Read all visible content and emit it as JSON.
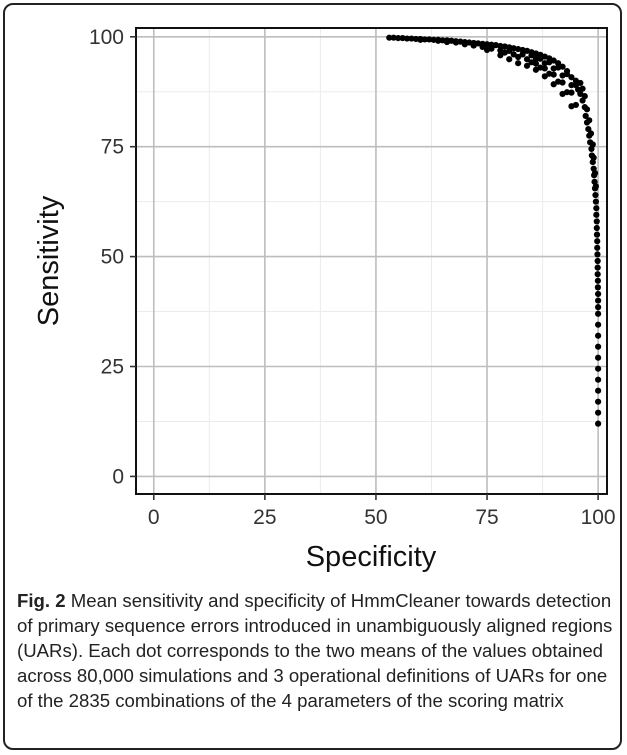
{
  "caption": {
    "label": "Fig. 2",
    "text": "Mean sensitivity and specificity of HmmCleaner towards detection of primary sequence errors introduced in unambiguously aligned regions (UARs). Each dot corresponds to the two means of the values obtained across 80,000 simulations and 3 operational definitions of UARs for one of the 2835 combinations of the 4 parameters of the scoring matrix"
  },
  "chart_data": {
    "type": "scatter",
    "xlabel": "Specificity",
    "ylabel": "Sensitivity",
    "xlim": [
      -4,
      102
    ],
    "ylim": [
      -4,
      102
    ],
    "x_ticks": [
      0,
      25,
      50,
      75,
      100
    ],
    "y_ticks": [
      0,
      25,
      50,
      75,
      100
    ],
    "grid": true,
    "legend": "none",
    "point_color": "#000000",
    "series": [
      {
        "points": [
          [
            53,
            99.8
          ],
          [
            54,
            99.8
          ],
          [
            55,
            99.7
          ],
          [
            56,
            99.7
          ],
          [
            57,
            99.6
          ],
          [
            58,
            99.6
          ],
          [
            59,
            99.5
          ],
          [
            60,
            99.5
          ],
          [
            61,
            99.4
          ],
          [
            62,
            99.4
          ],
          [
            63,
            99.3
          ],
          [
            64,
            99.3
          ],
          [
            65,
            99.2
          ],
          [
            66,
            99.2
          ],
          [
            67,
            99.1
          ],
          [
            68,
            99.0
          ],
          [
            69,
            98.9
          ],
          [
            70,
            98.8
          ],
          [
            71,
            98.7
          ],
          [
            72,
            98.6
          ],
          [
            73,
            98.5
          ],
          [
            74,
            98.4
          ],
          [
            75,
            98.3
          ],
          [
            76,
            98.2
          ],
          [
            77,
            98.1
          ],
          [
            78,
            97.9
          ],
          [
            79,
            97.8
          ],
          [
            80,
            97.6
          ],
          [
            81,
            97.4
          ],
          [
            82,
            97.2
          ],
          [
            83,
            97.0
          ],
          [
            84,
            96.8
          ],
          [
            85,
            96.5
          ],
          [
            86,
            96.2
          ],
          [
            87,
            95.9
          ],
          [
            88,
            95.5
          ],
          [
            89,
            95.1
          ],
          [
            90,
            94.6
          ],
          [
            91,
            94.0
          ],
          [
            92,
            93.2
          ],
          [
            93,
            92.2
          ],
          [
            94,
            90.8
          ],
          [
            95,
            89.0
          ],
          [
            60,
            99.3
          ],
          [
            64,
            99.1
          ],
          [
            68,
            98.7
          ],
          [
            72,
            98.2
          ],
          [
            76,
            97.6
          ],
          [
            80,
            96.8
          ],
          [
            83,
            96.0
          ],
          [
            86,
            95.0
          ],
          [
            88,
            94.0
          ],
          [
            90,
            92.8
          ],
          [
            92,
            91.2
          ],
          [
            94,
            89.0
          ],
          [
            66,
            98.8
          ],
          [
            70,
            98.3
          ],
          [
            74,
            97.7
          ],
          [
            78,
            96.9
          ],
          [
            81,
            96.0
          ],
          [
            84,
            94.9
          ],
          [
            86,
            93.9
          ],
          [
            88,
            92.8
          ],
          [
            90,
            91.4
          ],
          [
            92,
            89.6
          ],
          [
            94,
            87.3
          ],
          [
            72,
            98.0
          ],
          [
            76,
            97.3
          ],
          [
            79,
            96.4
          ],
          [
            82,
            95.4
          ],
          [
            85,
            94.2
          ],
          [
            87,
            93.0
          ],
          [
            89,
            91.6
          ],
          [
            91,
            89.8
          ],
          [
            93,
            87.4
          ],
          [
            95,
            84.5
          ],
          [
            75,
            97.0
          ],
          [
            78,
            95.8
          ],
          [
            80,
            94.9
          ],
          [
            82,
            94.0
          ],
          [
            84,
            93.4
          ],
          [
            86,
            92.5
          ],
          [
            88,
            91.0
          ],
          [
            90,
            89.2
          ],
          [
            92,
            87.0
          ],
          [
            94,
            84.2
          ],
          [
            85,
            95.8
          ],
          [
            87,
            95.0
          ],
          [
            89,
            94.2
          ],
          [
            91,
            93.0
          ],
          [
            93,
            91.5
          ],
          [
            95,
            90.0
          ],
          [
            95.5,
            88.0
          ],
          [
            96,
            89.5
          ],
          [
            96,
            87.0
          ],
          [
            96.5,
            85.5
          ],
          [
            96.5,
            88.2
          ],
          [
            97,
            86.5
          ],
          [
            97,
            84.0
          ],
          [
            97.2,
            82.0
          ],
          [
            97.5,
            83.5
          ],
          [
            97.5,
            80.5
          ],
          [
            97.8,
            79.0
          ],
          [
            98,
            81.0
          ],
          [
            98,
            77.5
          ],
          [
            98.2,
            76.0
          ],
          [
            98.4,
            78.0
          ],
          [
            98.5,
            74.5
          ],
          [
            98.6,
            73.0
          ],
          [
            98.8,
            75.5
          ],
          [
            98.8,
            71.5
          ],
          [
            99,
            70.0
          ],
          [
            99,
            72.5
          ],
          [
            99.1,
            68.5
          ],
          [
            99.2,
            67.0
          ],
          [
            99.3,
            65.5
          ],
          [
            99.3,
            69.0
          ],
          [
            99.4,
            64.0
          ],
          [
            99.5,
            62.5
          ],
          [
            99.5,
            66.0
          ],
          [
            99.6,
            61.0
          ],
          [
            99.6,
            59.5
          ],
          [
            99.7,
            58.0
          ],
          [
            99.7,
            56.5
          ],
          [
            99.75,
            55.0
          ],
          [
            99.8,
            53.5
          ],
          [
            99.8,
            52.0
          ],
          [
            99.85,
            50.5
          ],
          [
            99.9,
            49.0
          ],
          [
            99.9,
            47.5
          ],
          [
            99.9,
            46.0
          ],
          [
            99.95,
            44.5
          ],
          [
            99.95,
            43.0
          ],
          [
            100,
            41.5
          ],
          [
            100,
            40.0
          ],
          [
            100,
            38.5
          ],
          [
            100,
            37.0
          ],
          [
            100,
            34.5
          ],
          [
            100,
            32.0
          ],
          [
            100,
            29.5
          ],
          [
            100,
            27.0
          ],
          [
            100,
            24.5
          ],
          [
            100,
            22.0
          ],
          [
            100,
            19.5
          ],
          [
            100,
            17.0
          ],
          [
            100,
            14.5
          ],
          [
            100,
            12.0
          ]
        ]
      }
    ]
  }
}
